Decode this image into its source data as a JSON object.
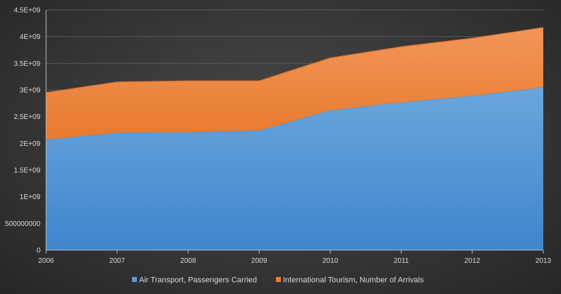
{
  "chart_data": {
    "type": "area",
    "stacked": true,
    "title": "",
    "xlabel": "",
    "ylabel": "",
    "x": [
      "2006",
      "2007",
      "2008",
      "2009",
      "2010",
      "2011",
      "2012",
      "2013"
    ],
    "ylim": [
      0,
      4500000000
    ],
    "yticks": [
      0,
      500000000,
      1000000000,
      1500000000,
      2000000000,
      2500000000,
      3000000000,
      3500000000,
      4000000000,
      4500000000
    ],
    "ytick_labels": [
      "0",
      "500000000",
      "1E+09",
      "1.5E+09",
      "2E+09",
      "2.5E+09",
      "3E+09",
      "3.5E+09",
      "4E+09",
      "4.5E+09"
    ],
    "grid": true,
    "legend_position": "bottom",
    "series": [
      {
        "name": "Air Transport, Passengers Carried",
        "color": "#5b9bd5",
        "values": [
          2070000000,
          2200000000,
          2210000000,
          2240000000,
          2620000000,
          2770000000,
          2890000000,
          3050000000
        ]
      },
      {
        "name": "International Tourism, Number of Arrivals",
        "color": "#ed7d31",
        "values": [
          880000000,
          950000000,
          960000000,
          930000000,
          980000000,
          1040000000,
          1080000000,
          1120000000
        ]
      }
    ]
  }
}
